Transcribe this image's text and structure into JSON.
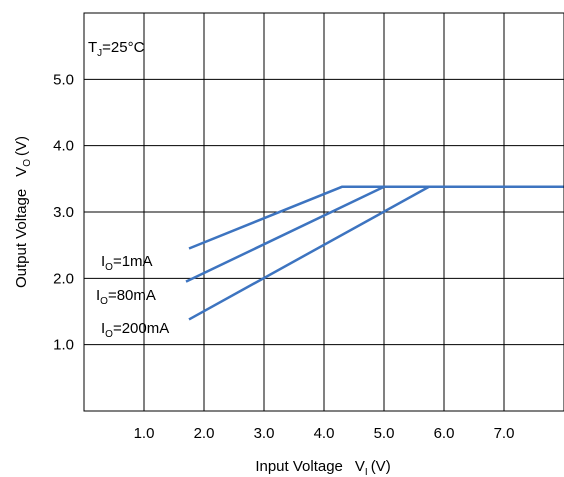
{
  "chart_data": {
    "type": "line",
    "title": "",
    "xlabel": "Input Voltage",
    "xlabel_symbol": "V",
    "xlabel_sub": "I",
    "xlabel_unit": "(V)",
    "ylabel": "Output Voltage",
    "ylabel_symbol": "V",
    "ylabel_sub": "O",
    "ylabel_unit": "(V)",
    "xlim": [
      0,
      8
    ],
    "ylim": [
      0,
      6
    ],
    "x_ticks": [
      1.0,
      2.0,
      3.0,
      4.0,
      5.0,
      6.0,
      7.0
    ],
    "x_tick_labels": [
      "1.0",
      "2.0",
      "3.0",
      "4.0",
      "5.0",
      "6.0",
      "7.0"
    ],
    "y_ticks": [
      1.0,
      2.0,
      3.0,
      4.0,
      5.0
    ],
    "y_tick_labels": [
      "1.0",
      "2.0",
      "3.0",
      "4.0",
      "5.0"
    ],
    "grid": true,
    "line_color": "#3d74c0",
    "annotation": {
      "main": "T",
      "sub": "J",
      "rest": "=25°C"
    },
    "series": [
      {
        "label_main": "I",
        "label_sub": "O",
        "label_rest": "=1mA",
        "x": [
          1.75,
          4.3,
          8.0
        ],
        "y": [
          2.45,
          3.38,
          3.38
        ]
      },
      {
        "label_main": "I",
        "label_sub": "O",
        "label_rest": "=80mA",
        "x": [
          1.7,
          5.0,
          8.0
        ],
        "y": [
          1.95,
          3.38,
          3.38
        ]
      },
      {
        "label_main": "I",
        "label_sub": "O",
        "label_rest": "=200mA",
        "x": [
          1.75,
          5.75,
          8.0
        ],
        "y": [
          1.38,
          3.38,
          3.38
        ]
      }
    ]
  }
}
